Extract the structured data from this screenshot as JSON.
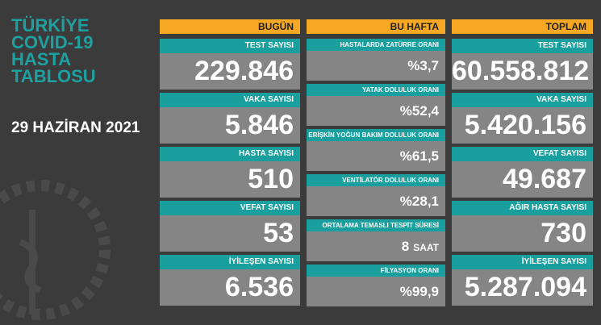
{
  "title": [
    "TÜRKİYE",
    "COVID-19",
    "HASTA",
    "TABLOSU"
  ],
  "date": "29 HAZİRAN 2021",
  "columns": [
    {
      "header": "BUGÜN",
      "items": [
        {
          "label": "TEST SAYISI",
          "value": "229.846"
        },
        {
          "label": "VAKA SAYISI",
          "value": "5.846"
        },
        {
          "label": "HASTA SAYISI",
          "value": "510"
        },
        {
          "label": "VEFAT SAYISI",
          "value": "53"
        },
        {
          "label": "İYİLEŞEN SAYISI",
          "value": "6.536"
        }
      ]
    },
    {
      "header": "BU HAFTA",
      "items": [
        {
          "label": "HASTALARDA ZATÜRRE ORANI",
          "value": "%3,7"
        },
        {
          "label": "YATAK DOLULUK ORANI",
          "value": "%52,4"
        },
        {
          "label": "ERİŞKİN YOĞUN BAKIM DOLULUK ORANI",
          "value": "%61,5"
        },
        {
          "label": "VENTİLATÖR DOLULUK ORANI",
          "value": "%28,1"
        },
        {
          "label": "ORTALAMA TEMASLI TESPİT SÜRESİ",
          "value": "8",
          "unit": "SAAT"
        },
        {
          "label": "FİLYASYON ORANI",
          "value": "%99,9"
        }
      ]
    },
    {
      "header": "TOPLAM",
      "items": [
        {
          "label": "TEST SAYISI",
          "value": "60.558.812"
        },
        {
          "label": "VAKA SAYISI",
          "value": "5.420.156"
        },
        {
          "label": "VEFAT SAYISI",
          "value": "49.687"
        },
        {
          "label": "AĞIR HASTA SAYISI",
          "value": "730"
        },
        {
          "label": "İYİLEŞEN SAYISI",
          "value": "5.287.094"
        }
      ]
    }
  ]
}
